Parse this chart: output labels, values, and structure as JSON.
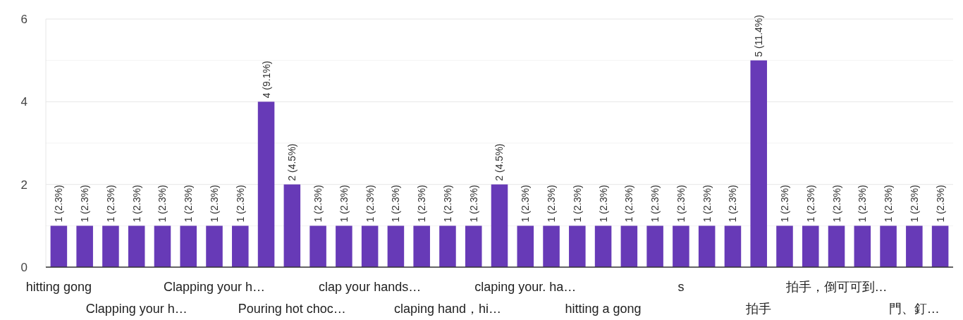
{
  "chart_data": {
    "type": "bar",
    "categories": [
      "hitting gong",
      null,
      null,
      "Clapping your h…",
      null,
      null,
      "Clapping your h…",
      null,
      null,
      "Pouring hot choc…",
      null,
      null,
      "clap your hands…",
      null,
      null,
      "claping hand，hi…",
      null,
      null,
      "claping your. ha…",
      null,
      null,
      "hitting a gong",
      null,
      null,
      "s",
      null,
      null,
      "拍手",
      null,
      null,
      "拍手，倒可可到…",
      null,
      null,
      "門、釘…",
      null
    ],
    "values": [
      1,
      1,
      1,
      1,
      1,
      1,
      1,
      1,
      4,
      2,
      1,
      1,
      1,
      1,
      1,
      1,
      1,
      2,
      1,
      1,
      1,
      1,
      1,
      1,
      1,
      1,
      1,
      5,
      1,
      1,
      1,
      1,
      1,
      1,
      1
    ],
    "value_labels": [
      "1 (2.3%)",
      "1 (2.3%)",
      "1 (2.3%)",
      "1 (2.3%)",
      "1 (2.3%)",
      "1 (2.3%)",
      "1 (2.3%)",
      "1 (2.3%)",
      "4 (9.1%)",
      "2 (4.5%)",
      "1 (2.3%)",
      "1 (2.3%)",
      "1 (2.3%)",
      "1 (2.3%)",
      "1 (2.3%)",
      "1 (2.3%)",
      "1 (2.3%)",
      "2 (4.5%)",
      "1 (2.3%)",
      "1 (2.3%)",
      "1 (2.3%)",
      "1 (2.3%)",
      "1 (2.3%)",
      "1 (2.3%)",
      "1 (2.3%)",
      "1 (2.3%)",
      "1 (2.3%)",
      "5 (11.4%)",
      "1 (2.3%)",
      "1 (2.3%)",
      "1 (2.3%)",
      "1 (2.3%)",
      "1 (2.3%)",
      "1 (2.3%)",
      "1 (2.3%)"
    ],
    "color": "#673ab7",
    "ylim": [
      0,
      6
    ],
    "yticks": [
      0,
      {
        "value": 1,
        "label": null
      },
      2,
      {
        "value": 3,
        "label": null
      },
      4,
      {
        "value": 5,
        "label": null
      },
      6
    ],
    "grid": true
  }
}
